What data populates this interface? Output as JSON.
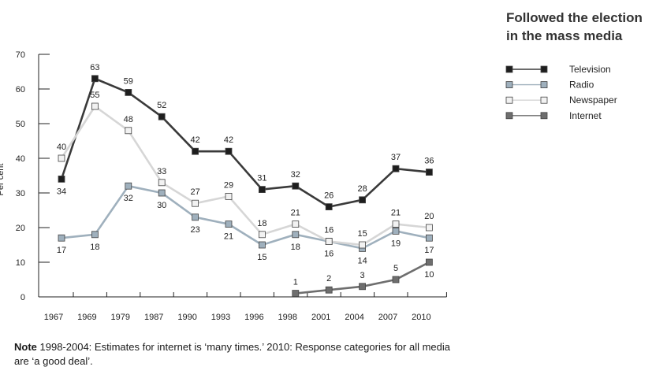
{
  "chart_data": {
    "type": "line",
    "title": [
      "Followed the election",
      "in the mass media"
    ],
    "ylabel": "Per cent",
    "xlabel": "",
    "ylim": [
      0,
      70
    ],
    "yticks": [
      0,
      10,
      20,
      30,
      40,
      50,
      60,
      70
    ],
    "categories": [
      "1967",
      "1969",
      "1979",
      "1987",
      "1990",
      "1993",
      "1996",
      "1998",
      "2001",
      "2004",
      "2007",
      "2010"
    ],
    "legend_position": "top-right",
    "series": [
      {
        "name": "Television",
        "color": "#3a3a3a",
        "marker": "#1e1e1e",
        "values": [
          34,
          63,
          59,
          52,
          42,
          42,
          31,
          32,
          26,
          28,
          37,
          36
        ],
        "label_pos": [
          "below",
          "above",
          "above",
          "above",
          "above",
          "above",
          "above",
          "above",
          "above",
          "above",
          "above",
          "above"
        ]
      },
      {
        "name": "Radio",
        "color": "#9fb0bd",
        "marker": "#9fb0bd",
        "values": [
          17,
          18,
          32,
          30,
          23,
          21,
          15,
          18,
          16,
          14,
          19,
          17
        ],
        "label_pos": [
          "below",
          "below",
          "below",
          "below",
          "below",
          "below",
          "below",
          "below",
          "below",
          "below",
          "below",
          "below"
        ]
      },
      {
        "name": "Newspaper",
        "color": "#d6d6d6",
        "marker": "#f2f2f2",
        "values": [
          40,
          55,
          48,
          33,
          27,
          29,
          18,
          21,
          16,
          15,
          21,
          20
        ],
        "label_pos": [
          "above",
          "above",
          "above",
          "above",
          "above",
          "above",
          "above",
          "above",
          "above",
          "above",
          "above",
          "above"
        ]
      },
      {
        "name": "Internet",
        "color": "#6e6e6e",
        "marker": "#6e6e6e",
        "values": [
          null,
          null,
          null,
          null,
          null,
          null,
          null,
          1,
          2,
          3,
          5,
          10
        ],
        "label_pos": [
          "above",
          "above",
          "above",
          "above",
          "above",
          "above",
          "above",
          "above",
          "above",
          "above",
          "above",
          "below"
        ]
      }
    ],
    "grid": false
  },
  "note": {
    "label": "Note",
    "text": " 1998-2004: Estimates for internet is ‘many times.’ 2010: Response categories for all media are ‘a good deal’."
  }
}
